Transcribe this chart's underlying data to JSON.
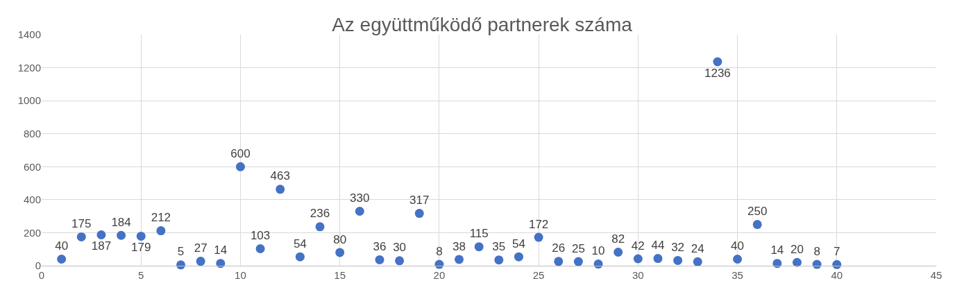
{
  "chart_data": {
    "type": "scatter",
    "title": "Az együttműködő partnerek száma",
    "x": [
      1,
      2,
      3,
      4,
      5,
      6,
      7,
      8,
      9,
      10,
      11,
      12,
      13,
      14,
      15,
      16,
      17,
      18,
      19,
      20,
      21,
      22,
      23,
      24,
      25,
      26,
      27,
      28,
      29,
      30,
      31,
      32,
      33,
      34,
      35,
      36,
      37,
      38,
      39,
      40
    ],
    "values": [
      40,
      175,
      187,
      184,
      179,
      212,
      5,
      27,
      14,
      600,
      103,
      463,
      54,
      236,
      80,
      330,
      36,
      30,
      317,
      8,
      38,
      115,
      35,
      54,
      172,
      26,
      25,
      10,
      82,
      42,
      44,
      32,
      24,
      1236,
      40,
      250,
      14,
      20,
      8,
      7
    ],
    "color": "#4472c4",
    "marker": "circle",
    "data_labels": true,
    "grid": true,
    "xlim": [
      0,
      45
    ],
    "xticks": [
      0,
      5,
      10,
      15,
      20,
      25,
      30,
      35,
      40,
      45
    ],
    "ylim": [
      0,
      1400
    ],
    "yticks": [
      0,
      200,
      400,
      600,
      800,
      1000,
      1200,
      1400
    ]
  }
}
